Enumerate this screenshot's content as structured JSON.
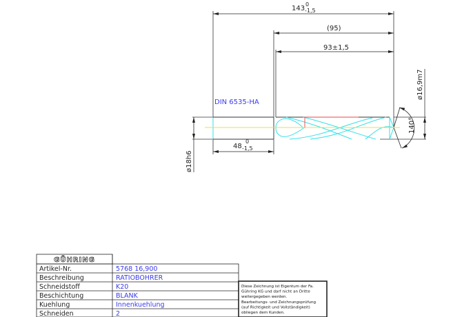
{
  "drawing": {
    "standard_label": "DIN 6535-HA",
    "dimensions": {
      "overall_length": {
        "nominal": "143",
        "upper": "0",
        "lower": "-1,5"
      },
      "flute_length_ref": "(95)",
      "cutting_length": "93±1,5",
      "shank_length": {
        "nominal": "48",
        "upper": "0",
        "lower": "-1,5"
      },
      "shank_diameter": "ø18h6",
      "cutting_diameter": "ø16,9m7",
      "point_angle": "140°"
    },
    "colors": {
      "outline": "#333333",
      "flutes": "#33e0e8",
      "centerline": "#e8e040",
      "margin": "#f04040",
      "text_blue": "#3a3af0"
    }
  },
  "title_block": {
    "logo": "GÜHRING",
    "rows": [
      {
        "label": "Artikel-Nr.",
        "value": "5768 16,900"
      },
      {
        "label": "Beschreibung",
        "value": "RATIOBOHRER"
      },
      {
        "label": "Schneidstoff",
        "value": "K20"
      },
      {
        "label": "Beschichtung",
        "value": "BLANK"
      },
      {
        "label": "Kuehlung",
        "value": "Innenkuehlung"
      },
      {
        "label": "Schneiden",
        "value": "2"
      }
    ],
    "notice": [
      "Diese Zeichnung ist Eigentum der Fa.",
      "Gühring KG und darf nicht an Dritte",
      "weitergegeben werden.",
      "Bearbeitungs- und Zeichnungsprüfung",
      "(auf Richtigkeit und Vollständigkeit)",
      "obliegen dem Kunden."
    ]
  }
}
